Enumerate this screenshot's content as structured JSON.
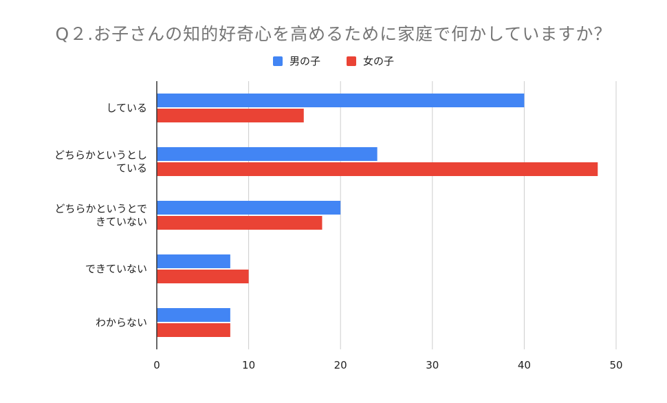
{
  "chart_data": {
    "type": "bar",
    "orientation": "horizontal",
    "title": "Q２.お子さんの知的好奇心を高めるために家庭で何かしていますか？",
    "categories": [
      "している",
      "どちらかというとしている",
      "どちらかというとできていない",
      "できていない",
      "わからない"
    ],
    "category_lines": [
      [
        "している"
      ],
      [
        "どちらかというとし",
        "ている"
      ],
      [
        "どちらかというとで",
        "きていない"
      ],
      [
        "できていない"
      ],
      [
        "わからない"
      ]
    ],
    "series": [
      {
        "name": "男の子",
        "color": "#4285f4",
        "values": [
          40,
          24,
          20,
          8,
          8
        ]
      },
      {
        "name": "女の子",
        "color": "#ea4335",
        "values": [
          16,
          48,
          18,
          10,
          8
        ]
      }
    ],
    "xlim": [
      0,
      50
    ],
    "xticks": [
      0,
      10,
      20,
      30,
      40,
      50
    ],
    "grid": true,
    "legend_position": "top-center",
    "xlabel": "",
    "ylabel": ""
  }
}
